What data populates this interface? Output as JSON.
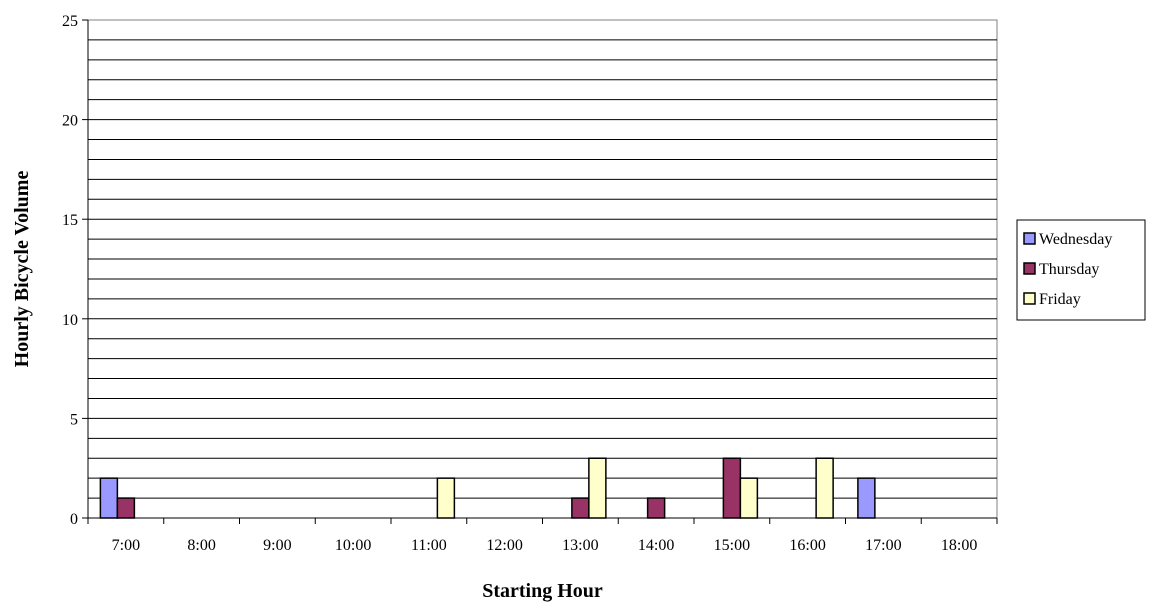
{
  "chart_data": {
    "type": "bar",
    "title": "",
    "xlabel": "Starting Hour",
    "ylabel": "Hourly Bicycle Volume",
    "categories": [
      "7:00",
      "8:00",
      "9:00",
      "10:00",
      "11:00",
      "12:00",
      "13:00",
      "14:00",
      "15:00",
      "16:00",
      "17:00",
      "18:00"
    ],
    "series": [
      {
        "name": "Wednesday",
        "color": "#9999ff",
        "values": [
          2,
          0,
          0,
          0,
          0,
          0,
          0,
          0,
          0,
          0,
          2,
          0
        ]
      },
      {
        "name": "Thursday",
        "color": "#993366",
        "values": [
          1,
          0,
          0,
          0,
          0,
          0,
          1,
          1,
          3,
          0,
          0,
          0
        ]
      },
      {
        "name": "Friday",
        "color": "#ffffcc",
        "values": [
          0,
          0,
          0,
          0,
          2,
          0,
          3,
          0,
          2,
          3,
          0,
          0
        ]
      }
    ],
    "ylim": [
      0,
      25
    ],
    "yticks": [
      0,
      5,
      10,
      15,
      20,
      25
    ],
    "grid": "horizontal lines every 1 unit",
    "legend": "right"
  }
}
